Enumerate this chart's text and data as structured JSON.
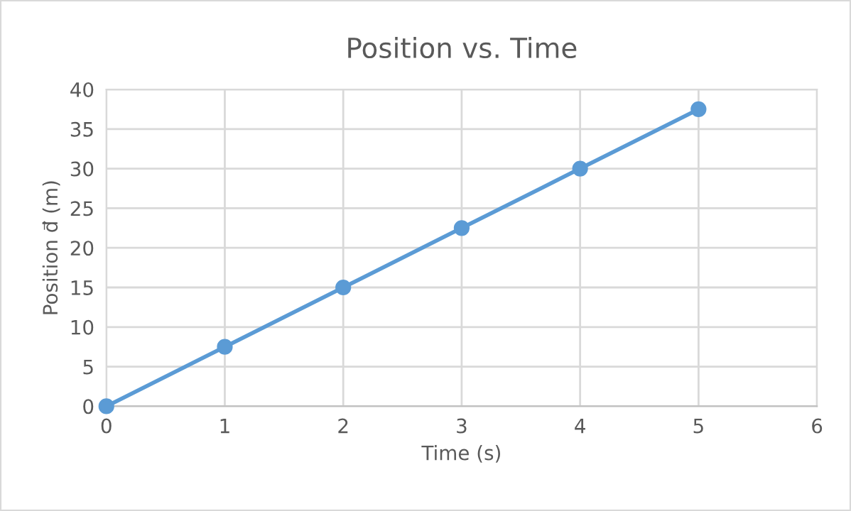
{
  "chart_data": {
    "type": "line",
    "title": "Position vs. Time",
    "xlabel": "Time (s)",
    "ylabel": "Position d⃗ (m)",
    "x": [
      0,
      1,
      2,
      3,
      4,
      5
    ],
    "series": [
      {
        "color": "#5b9bd5",
        "values": [
          0,
          7.5,
          15,
          22.5,
          30,
          37.5
        ]
      }
    ],
    "xlim": [
      0,
      6
    ],
    "xticks": [
      0,
      1,
      2,
      3,
      4,
      5,
      6
    ],
    "ylim": [
      0,
      40
    ],
    "yticks": [
      0,
      5,
      10,
      15,
      20,
      25,
      30,
      35,
      40
    ],
    "grid": true,
    "marker": "circle",
    "line_style": "solid",
    "legend": false
  }
}
